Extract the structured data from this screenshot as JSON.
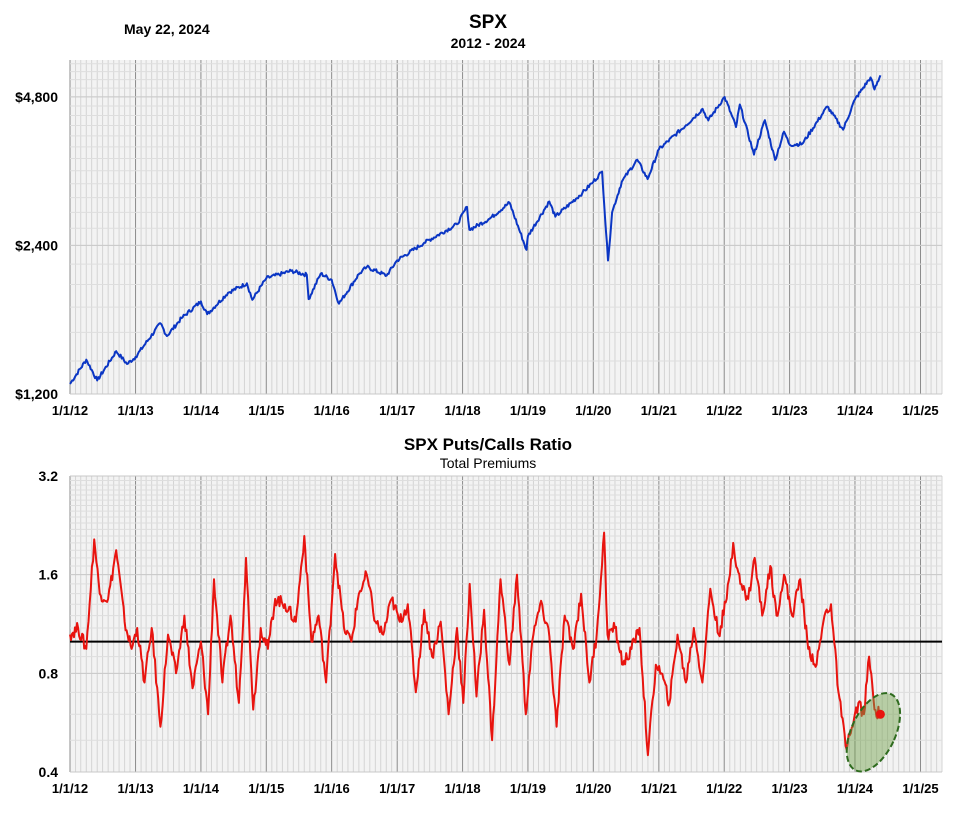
{
  "date_label": "May 22, 2024",
  "chart_data": [
    {
      "type": "line",
      "title": "SPX",
      "subtitle": "2012 - 2024",
      "xlabel": "",
      "ylabel": "",
      "y_scale": "log",
      "ylim": [
        1200,
        5700
      ],
      "y_ticks": [
        1200,
        2400,
        4800
      ],
      "y_tick_labels": [
        "$1,200",
        "$2,400",
        "$4,800"
      ],
      "xlim": [
        "2012-01-01",
        "2025-05-01"
      ],
      "x_tick_labels": [
        "1/1/12",
        "1/1/13",
        "1/1/14",
        "1/1/15",
        "1/1/16",
        "1/1/17",
        "1/1/18",
        "1/1/19",
        "1/1/20",
        "1/1/21",
        "1/1/22",
        "1/1/23",
        "1/1/24",
        "1/1/25"
      ],
      "grid": true,
      "color": "#0b36c4",
      "series": [
        {
          "x": [
            "2012-01-01",
            "2012-04-01",
            "2012-06-01",
            "2012-09-15",
            "2012-11-15",
            "2013-01-01",
            "2013-05-20",
            "2013-06-25",
            "2013-09-15",
            "2014-01-01",
            "2014-02-05",
            "2014-06-01",
            "2014-09-15",
            "2014-10-15",
            "2015-01-01",
            "2015-05-20",
            "2015-08-15",
            "2015-08-25",
            "2015-11-01",
            "2016-01-01",
            "2016-02-11",
            "2016-06-01",
            "2016-07-15",
            "2016-11-03",
            "2017-01-01",
            "2017-06-01",
            "2017-12-01",
            "2018-01-26",
            "2018-02-08",
            "2018-06-01",
            "2018-09-20",
            "2018-12-24",
            "2019-01-01",
            "2019-04-30",
            "2019-06-03",
            "2019-11-01",
            "2020-01-01",
            "2020-02-19",
            "2020-03-23",
            "2020-04-15",
            "2020-06-08",
            "2020-09-02",
            "2020-10-30",
            "2021-01-01",
            "2021-06-01",
            "2021-09-02",
            "2021-10-04",
            "2022-01-03",
            "2022-03-08",
            "2022-03-29",
            "2022-06-16",
            "2022-08-16",
            "2022-10-12",
            "2022-12-01",
            "2023-01-01",
            "2023-03-13",
            "2023-07-31",
            "2023-10-27",
            "2024-01-01",
            "2024-03-28",
            "2024-04-19",
            "2024-05-22"
          ],
          "values": [
            1258,
            1408,
            1278,
            1465,
            1380,
            1426,
            1669,
            1573,
            1710,
            1848,
            1741,
            1924,
            2011,
            1862,
            2059,
            2131,
            2092,
            1868,
            2104,
            2044,
            1829,
            2099,
            2170,
            2085,
            2239,
            2430,
            2648,
            2873,
            2581,
            2718,
            2930,
            2351,
            2507,
            2946,
            2744,
            3066,
            3230,
            3386,
            2237,
            2800,
            3232,
            3580,
            3270,
            3756,
            4204,
            4537,
            4300,
            4797,
            4170,
            4631,
            3667,
            4305,
            3577,
            4080,
            3839,
            3855,
            4589,
            4117,
            4742,
            5254,
            4967,
            5307
          ]
        }
      ]
    },
    {
      "type": "line",
      "title": "SPX Puts/Calls Ratio",
      "subtitle": "Total Premiums",
      "xlabel": "",
      "ylabel": "",
      "y_scale": "log",
      "ylim": [
        0.4,
        3.2
      ],
      "y_ticks": [
        0.4,
        0.8,
        1.6,
        3.2
      ],
      "y_tick_labels": [
        "0.4",
        "0.8",
        "1.6",
        "3.2"
      ],
      "xlim": [
        "2012-01-01",
        "2025-05-01"
      ],
      "x_tick_labels": [
        "1/1/12",
        "1/1/13",
        "1/1/14",
        "1/1/15",
        "1/1/16",
        "1/1/17",
        "1/1/18",
        "1/1/19",
        "1/1/20",
        "1/1/21",
        "1/1/22",
        "1/1/23",
        "1/1/24",
        "1/1/25"
      ],
      "grid": true,
      "reference_line": 1.0,
      "color": "#e8140f",
      "highlight": {
        "x": "2024-05-22",
        "y": 0.6,
        "note": "green ellipse around recent low readings"
      },
      "series": [
        {
          "x": [
            "2012-01-01",
            "2012-02-15",
            "2012-04-01",
            "2012-05-15",
            "2012-06-15",
            "2012-08-01",
            "2012-09-15",
            "2012-11-01",
            "2012-12-10",
            "2013-01-10",
            "2013-02-20",
            "2013-04-01",
            "2013-05-20",
            "2013-07-01",
            "2013-08-15",
            "2013-10-01",
            "2013-11-15",
            "2014-01-01",
            "2014-02-10",
            "2014-03-15",
            "2014-05-01",
            "2014-06-15",
            "2014-08-01",
            "2014-09-10",
            "2014-10-20",
            "2014-12-01",
            "2015-01-10",
            "2015-02-20",
            "2015-04-15",
            "2015-06-15",
            "2015-08-01",
            "2015-09-10",
            "2015-10-20",
            "2015-12-01",
            "2016-01-20",
            "2016-03-10",
            "2016-04-20",
            "2016-06-01",
            "2016-07-15",
            "2016-09-01",
            "2016-10-15",
            "2016-12-01",
            "2017-01-15",
            "2017-03-01",
            "2017-04-15",
            "2017-06-01",
            "2017-07-15",
            "2017-09-01",
            "2017-10-15",
            "2017-12-01",
            "2018-01-05",
            "2018-02-10",
            "2018-03-20",
            "2018-05-01",
            "2018-06-15",
            "2018-08-01",
            "2018-09-20",
            "2018-11-01",
            "2018-12-20",
            "2019-01-25",
            "2019-03-10",
            "2019-04-25",
            "2019-06-10",
            "2019-07-25",
            "2019-09-10",
            "2019-10-25",
            "2019-12-10",
            "2020-01-20",
            "2020-03-01",
            "2020-03-20",
            "2020-05-01",
            "2020-06-15",
            "2020-08-01",
            "2020-09-15",
            "2020-11-01",
            "2020-12-15",
            "2021-01-15",
            "2021-03-01",
            "2021-04-15",
            "2021-06-01",
            "2021-07-15",
            "2021-09-01",
            "2021-10-15",
            "2021-12-01",
            "2022-01-15",
            "2022-02-20",
            "2022-04-01",
            "2022-05-15",
            "2022-06-20",
            "2022-08-01",
            "2022-09-15",
            "2022-10-20",
            "2022-12-01",
            "2023-01-15",
            "2023-03-01",
            "2023-04-15",
            "2023-06-01",
            "2023-07-15",
            "2023-08-20",
            "2023-10-01",
            "2023-11-10",
            "2023-12-20",
            "2024-01-20",
            "2024-02-20",
            "2024-03-20",
            "2024-04-19",
            "2024-05-22"
          ],
          "values": [
            1.05,
            1.1,
            0.95,
            2.05,
            1.4,
            1.35,
            1.9,
            1.15,
            0.95,
            1.1,
            0.75,
            1.1,
            0.55,
            1.05,
            0.8,
            1.2,
            0.72,
            1.0,
            0.6,
            1.55,
            0.75,
            1.2,
            0.65,
            1.8,
            0.62,
            1.1,
            0.95,
            1.35,
            1.3,
            1.15,
            2.1,
            1.0,
            1.2,
            0.75,
            1.85,
            1.1,
            1.0,
            1.4,
            1.6,
            1.15,
            1.05,
            1.35,
            1.15,
            1.3,
            0.7,
            1.25,
            0.9,
            1.15,
            0.6,
            1.1,
            0.65,
            1.5,
            0.68,
            1.25,
            0.5,
            1.55,
            0.85,
            1.6,
            0.6,
            1.0,
            1.3,
            1.1,
            0.55,
            1.2,
            0.95,
            1.4,
            0.75,
            1.05,
            2.15,
            1.05,
            1.1,
            0.85,
            0.95,
            1.1,
            0.45,
            0.85,
            0.8,
            0.65,
            1.05,
            0.75,
            1.1,
            0.75,
            1.45,
            1.05,
            1.35,
            2.0,
            1.5,
            1.35,
            1.8,
            1.2,
            1.7,
            1.2,
            1.6,
            1.2,
            1.55,
            0.95,
            0.85,
            1.2,
            1.3,
            0.7,
            0.48,
            0.55,
            0.65,
            0.6,
            0.9,
            0.62,
            0.6
          ]
        }
      ]
    }
  ]
}
